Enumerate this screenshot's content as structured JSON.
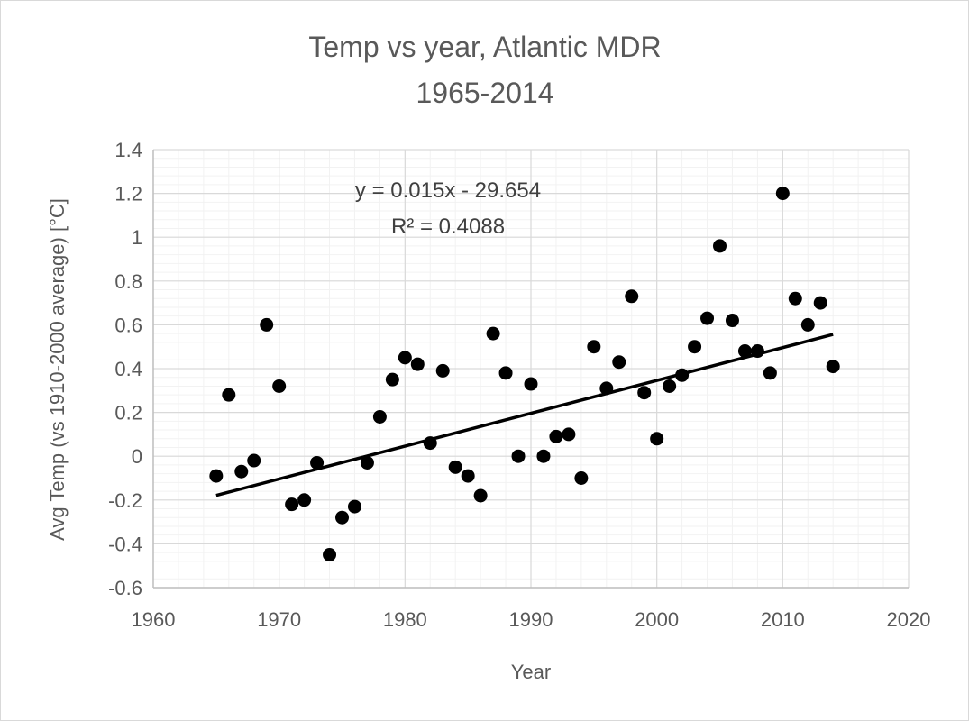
{
  "chart_data": {
    "type": "scatter",
    "title": [
      "Temp vs year, Atlantic MDR",
      "1965-2014"
    ],
    "xlabel": "Year",
    "ylabel": "Avg Temp (vs 1910-2000 average) [°C]",
    "xlim": [
      1960,
      2020
    ],
    "ylim": [
      -0.6,
      1.4
    ],
    "x_ticks": [
      1960,
      1970,
      1980,
      1990,
      2000,
      2010,
      2020
    ],
    "y_ticks": [
      -0.6,
      -0.4,
      -0.2,
      0,
      0.2,
      0.4,
      0.6,
      0.8,
      1,
      1.2,
      1.4
    ],
    "x_tick_labels": [
      "1960",
      "1970",
      "1980",
      "1990",
      "2000",
      "2010",
      "2020"
    ],
    "y_tick_labels": [
      "-0.6",
      "-0.4",
      "-0.2",
      "0",
      "0.2",
      "0.4",
      "0.6",
      "0.8",
      "1",
      "1.2",
      "1.4"
    ],
    "grid": true,
    "legend": false,
    "marker_color": "#000000",
    "series": [
      {
        "x": [
          1965,
          1966,
          1967,
          1968,
          1969,
          1970,
          1971,
          1972,
          1973,
          1974,
          1975,
          1976,
          1977,
          1978,
          1979,
          1980,
          1981,
          1982,
          1983,
          1984,
          1985,
          1986,
          1987,
          1988,
          1989,
          1990,
          1991,
          1992,
          1993,
          1994,
          1995,
          1996,
          1997,
          1998,
          1999,
          2000,
          2001,
          2002,
          2003,
          2004,
          2005,
          2006,
          2007,
          2008,
          2009,
          2010,
          2011,
          2012,
          2013,
          2014
        ],
        "y": [
          -0.09,
          0.28,
          -0.07,
          -0.02,
          0.6,
          0.32,
          -0.22,
          -0.2,
          -0.03,
          -0.45,
          -0.28,
          -0.23,
          -0.03,
          0.18,
          0.35,
          0.45,
          0.42,
          0.06,
          0.39,
          -0.05,
          -0.09,
          -0.18,
          0.56,
          0.38,
          0.0,
          0.33,
          0.0,
          0.09,
          0.1,
          -0.1,
          0.5,
          0.31,
          0.43,
          0.73,
          0.29,
          0.08,
          0.32,
          0.37,
          0.5,
          0.63,
          0.96,
          0.62,
          0.48,
          0.48,
          0.38,
          1.2,
          0.72,
          0.6,
          0.7,
          0.41
        ]
      }
    ],
    "trendline": {
      "slope": 0.015,
      "intercept": -29.654,
      "x_range": [
        1965,
        2014
      ],
      "equation": "y = 0.015x - 29.654",
      "r2_label": "R² = 0.4088",
      "color": "#000000"
    }
  }
}
